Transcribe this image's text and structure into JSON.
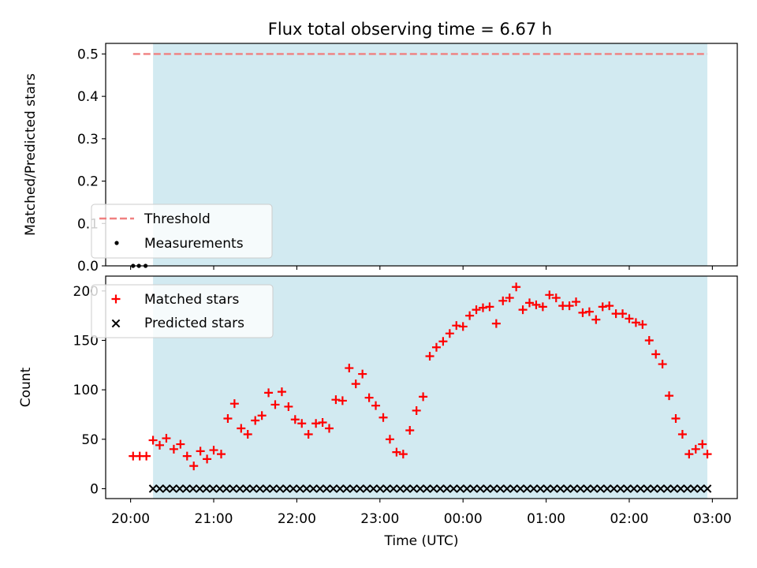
{
  "title": "Flux total observing time = 6.67 h",
  "colors": {
    "threshold": "#f08080",
    "matched": "#ff0000",
    "predicted": "#000000",
    "measurement": "#000000",
    "shade": "#add8e6"
  },
  "x_axis": {
    "label": "Time (UTC)",
    "range_hours": [
      -0.3,
      7.3
    ],
    "ticks": [
      {
        "value": 0,
        "label": "20:00"
      },
      {
        "value": 1,
        "label": "21:00"
      },
      {
        "value": 2,
        "label": "22:00"
      },
      {
        "value": 3,
        "label": "23:00"
      },
      {
        "value": 4,
        "label": "00:00"
      },
      {
        "value": 5,
        "label": "01:00"
      },
      {
        "value": 6,
        "label": "02:00"
      },
      {
        "value": 7,
        "label": "03:00"
      }
    ]
  },
  "chart_data": [
    {
      "type": "scatter",
      "ylabel": "Matched/Predicted stars",
      "ylim": [
        0,
        0.525
      ],
      "yticks": [
        "0.0",
        "0.1",
        "0.2",
        "0.3",
        "0.4",
        "0.5"
      ],
      "shaded_interval": [
        0.27,
        6.94
      ],
      "threshold": {
        "name": "Threshold",
        "value": 0.5,
        "x_range": [
          0.03,
          6.94
        ]
      },
      "measurements": {
        "name": "Measurements",
        "x": [
          0.03,
          0.1,
          0.18
        ],
        "y": [
          0,
          0,
          0
        ]
      },
      "legend_position": "lower left"
    },
    {
      "type": "scatter",
      "ylabel": "Count",
      "ylim": [
        -10,
        215
      ],
      "yticks": [
        "0",
        "50",
        "100",
        "150",
        "200"
      ],
      "shaded_interval": [
        0.27,
        6.94
      ],
      "legend_position": "upper left",
      "series": [
        {
          "name": "Matched stars",
          "marker": "plus",
          "x": [
            0.03,
            0.11,
            0.19,
            0.27,
            0.35,
            0.43,
            0.52,
            0.6,
            0.68,
            0.76,
            0.84,
            0.92,
            1.0,
            1.09,
            1.17,
            1.25,
            1.33,
            1.41,
            1.5,
            1.58,
            1.66,
            1.74,
            1.82,
            1.9,
            1.98,
            2.06,
            2.14,
            2.23,
            2.31,
            2.39,
            2.47,
            2.55,
            2.63,
            2.71,
            2.79,
            2.87,
            2.95,
            3.04,
            3.12,
            3.2,
            3.28,
            3.36,
            3.44,
            3.52,
            3.6,
            3.68,
            3.76,
            3.84,
            3.92,
            4.0,
            4.08,
            4.16,
            4.24,
            4.32,
            4.4,
            4.48,
            4.56,
            4.64,
            4.72,
            4.8,
            4.88,
            4.96,
            5.04,
            5.12,
            5.2,
            5.28,
            5.36,
            5.44,
            5.52,
            5.6,
            5.68,
            5.76,
            5.84,
            5.92,
            6.0,
            6.08,
            6.16,
            6.24,
            6.32,
            6.4,
            6.48,
            6.56,
            6.64,
            6.72,
            6.8,
            6.88,
            6.94
          ],
          "y": [
            33,
            33,
            33,
            49,
            44,
            51,
            40,
            45,
            33,
            23,
            38,
            30,
            39,
            35,
            71,
            86,
            61,
            55,
            69,
            74,
            97,
            85,
            98,
            83,
            70,
            66,
            55,
            66,
            67,
            61,
            90,
            89,
            122,
            106,
            116,
            92,
            84,
            72,
            50,
            37,
            35,
            59,
            79,
            93,
            134,
            143,
            149,
            157,
            165,
            164,
            175,
            181,
            183,
            184,
            167,
            190,
            193,
            204,
            181,
            188,
            186,
            184,
            196,
            193,
            185,
            185,
            189,
            178,
            179,
            171,
            184,
            185,
            177,
            177,
            172,
            168,
            166,
            150,
            136,
            126,
            94,
            71,
            55,
            35,
            40,
            45,
            35
          ]
        },
        {
          "name": "Predicted stars",
          "marker": "x",
          "x_start": 0.27,
          "x_end": 6.94,
          "count": 84,
          "value": 0
        }
      ]
    }
  ]
}
